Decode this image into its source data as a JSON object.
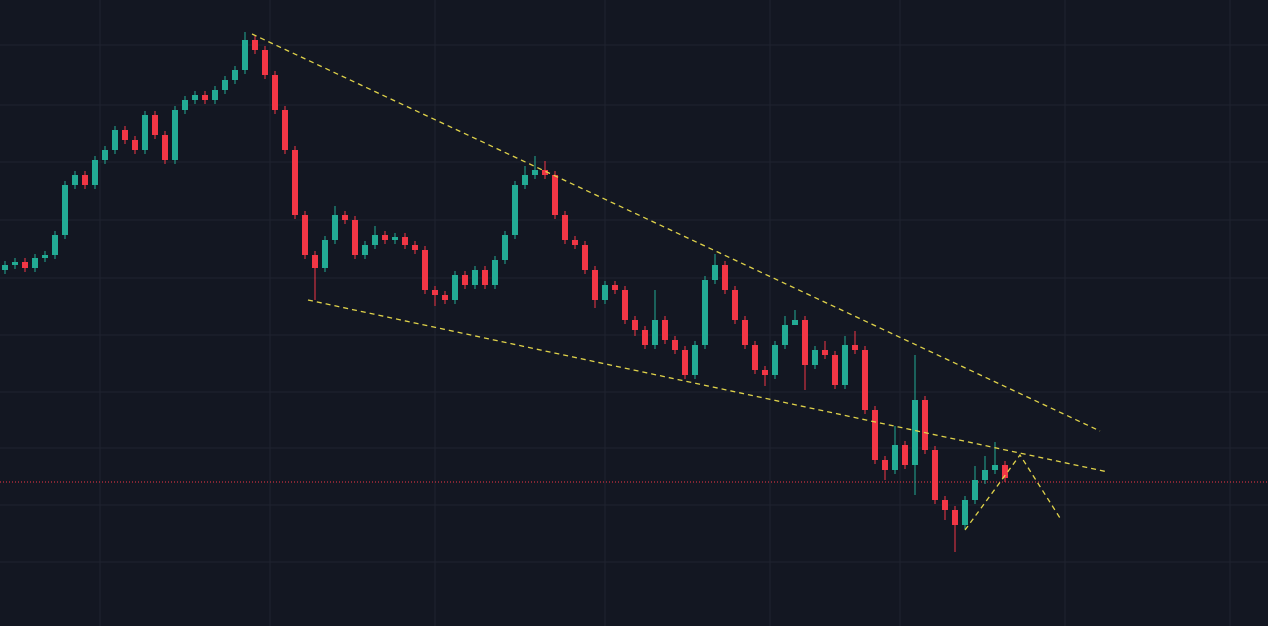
{
  "chart_data": {
    "type": "candlestick",
    "up_color": "#22ab94",
    "down_color": "#f23645",
    "ylim": [
      0,
      626
    ],
    "open": [
      356,
      361,
      364,
      358,
      368,
      371,
      391,
      441,
      451,
      441,
      466,
      476,
      496,
      486,
      476,
      511,
      491,
      466,
      516,
      526,
      531,
      526,
      536,
      546,
      556,
      586,
      576,
      551,
      516,
      476,
      411,
      371,
      358,
      386,
      411,
      406,
      371,
      381,
      391,
      386,
      389,
      381,
      376,
      336,
      331,
      326,
      351,
      341,
      356,
      341,
      366,
      391,
      441,
      451,
      456,
      451,
      411,
      386,
      381,
      356,
      326,
      341,
      336,
      306,
      296,
      281,
      306,
      286,
      276,
      251,
      281,
      346,
      361,
      336,
      306,
      281,
      256,
      251,
      281,
      301,
      306,
      261,
      276,
      271,
      241,
      281,
      276,
      216,
      166,
      156,
      181,
      161,
      226,
      176,
      126,
      116,
      101,
      126,
      146,
      156,
      161
    ],
    "high": [
      365,
      368,
      368,
      372,
      375,
      395,
      445,
      455,
      455,
      470,
      480,
      500,
      500,
      490,
      515,
      515,
      495,
      520,
      530,
      535,
      535,
      540,
      550,
      560,
      594,
      590,
      580,
      555,
      520,
      480,
      415,
      375,
      390,
      420,
      415,
      410,
      385,
      400,
      395,
      393,
      393,
      385,
      380,
      340,
      335,
      355,
      355,
      360,
      360,
      370,
      395,
      445,
      460,
      470,
      465,
      455,
      415,
      390,
      385,
      360,
      345,
      345,
      340,
      310,
      300,
      336,
      310,
      290,
      280,
      285,
      350,
      372,
      365,
      340,
      310,
      285,
      260,
      285,
      310,
      316,
      310,
      280,
      285,
      275,
      290,
      295,
      280,
      220,
      170,
      200,
      185,
      271,
      230,
      180,
      130,
      120,
      130,
      160,
      170,
      184,
      165
    ],
    "low": [
      352,
      357,
      354,
      354,
      364,
      367,
      387,
      437,
      437,
      437,
      462,
      472,
      482,
      472,
      472,
      487,
      462,
      462,
      512,
      522,
      522,
      522,
      532,
      542,
      552,
      572,
      547,
      512,
      472,
      407,
      367,
      326,
      354,
      382,
      402,
      367,
      367,
      377,
      382,
      382,
      377,
      372,
      332,
      320,
      322,
      322,
      337,
      337,
      337,
      337,
      362,
      387,
      437,
      447,
      447,
      407,
      382,
      377,
      352,
      318,
      322,
      332,
      302,
      290,
      277,
      277,
      282,
      272,
      247,
      247,
      277,
      342,
      332,
      302,
      277,
      252,
      240,
      247,
      277,
      302,
      236,
      257,
      267,
      237,
      237,
      272,
      212,
      162,
      146,
      152,
      157,
      131,
      172,
      122,
      106,
      74,
      97,
      122,
      142,
      152,
      144
    ],
    "close": [
      361,
      364,
      358,
      368,
      371,
      391,
      441,
      451,
      441,
      466,
      476,
      496,
      486,
      476,
      511,
      491,
      466,
      516,
      526,
      531,
      526,
      536,
      546,
      556,
      586,
      576,
      551,
      516,
      476,
      411,
      371,
      358,
      386,
      411,
      406,
      371,
      381,
      391,
      386,
      389,
      381,
      376,
      336,
      331,
      326,
      351,
      341,
      356,
      341,
      366,
      391,
      441,
      451,
      456,
      451,
      411,
      386,
      381,
      356,
      326,
      341,
      336,
      306,
      296,
      281,
      306,
      286,
      276,
      251,
      281,
      346,
      361,
      336,
      306,
      281,
      256,
      251,
      281,
      301,
      306,
      261,
      276,
      271,
      241,
      281,
      276,
      216,
      166,
      156,
      181,
      161,
      226,
      176,
      126,
      116,
      101,
      126,
      146,
      156,
      161,
      148
    ]
  }
}
